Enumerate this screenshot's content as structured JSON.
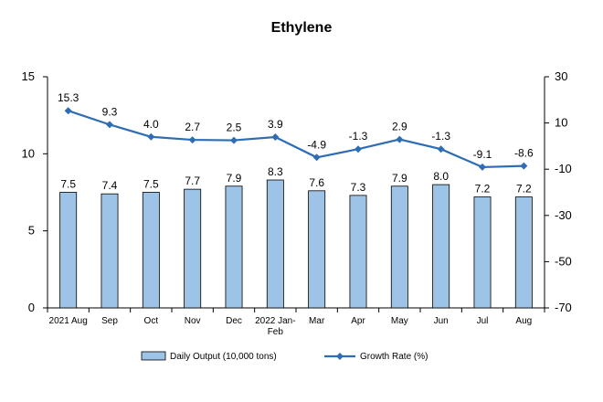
{
  "chart_data": {
    "type": "bar",
    "title": "Ethylene",
    "categories": [
      [
        "2021 Aug"
      ],
      [
        "Sep"
      ],
      [
        "Oct"
      ],
      [
        "Nov"
      ],
      [
        "Dec"
      ],
      [
        "2022 Jan-",
        "Feb"
      ],
      [
        "Mar"
      ],
      [
        "Apr"
      ],
      [
        "May"
      ],
      [
        "Jun"
      ],
      [
        "Jul"
      ],
      [
        "Aug"
      ]
    ],
    "series": [
      {
        "name": "Daily Output (10,000 tons)",
        "kind": "bar",
        "axis": "left",
        "values": [
          7.5,
          7.4,
          7.5,
          7.7,
          7.9,
          8.3,
          7.6,
          7.3,
          7.9,
          8.0,
          7.2,
          7.2
        ],
        "labels": [
          "7.5",
          "7.4",
          "7.5",
          "7.7",
          "7.9",
          "8.3",
          "7.6",
          "7.3",
          "7.9",
          "8.0",
          "7.2",
          "7.2"
        ],
        "color": "#9DC3E6"
      },
      {
        "name": "Growth Rate (%)",
        "kind": "line",
        "axis": "right",
        "values": [
          15.3,
          9.3,
          4.0,
          2.7,
          2.5,
          3.9,
          -4.9,
          -1.3,
          2.9,
          -1.3,
          -9.1,
          -8.6
        ],
        "labels": [
          "15.3",
          "9.3",
          "4.0",
          "2.7",
          "2.5",
          "3.9",
          "-4.9",
          "-1.3",
          "2.9",
          "-1.3",
          "-9.1",
          "-8.6"
        ],
        "color": "#2E6DB4"
      }
    ],
    "y_left": {
      "ylim": [
        0,
        15
      ],
      "ticks": [
        0,
        5,
        10,
        15
      ]
    },
    "y_right": {
      "ylim": [
        -70,
        30
      ],
      "ticks": [
        -70,
        -50,
        -30,
        -10,
        10,
        30
      ]
    },
    "grid": false,
    "legend_position": "bottom"
  }
}
